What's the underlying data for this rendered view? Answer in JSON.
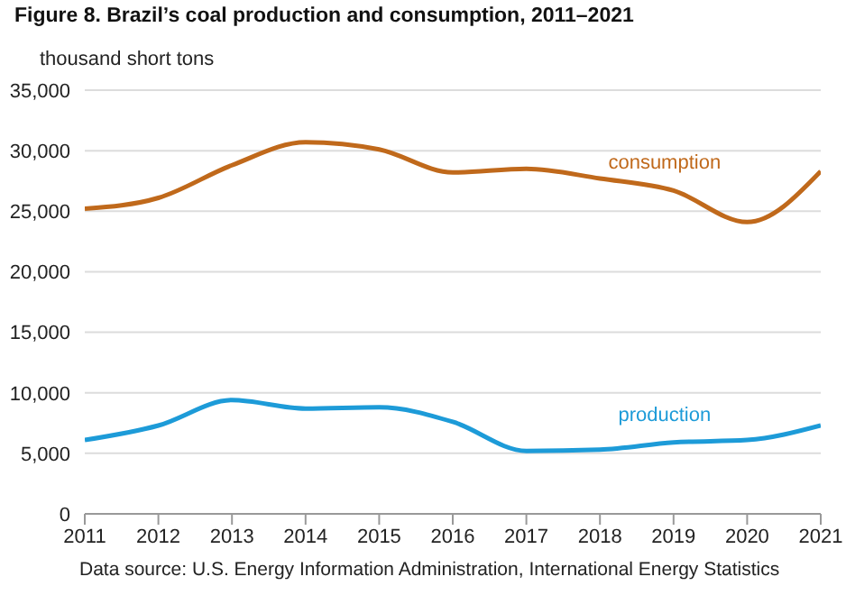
{
  "chart_data": {
    "type": "line",
    "title": "Figure 8. Brazil’s coal production and consumption, 2011–2021",
    "ylabel": "thousand short tons",
    "annotations": [
      "Data source: U.S. Energy Information Administration, International Energy Statistics"
    ],
    "x": [
      2011,
      2012,
      2013,
      2014,
      2015,
      2016,
      2017,
      2018,
      2019,
      2020,
      2021
    ],
    "xlim": [
      2011,
      2021
    ],
    "xticks": [
      2011,
      2012,
      2013,
      2014,
      2015,
      2016,
      2017,
      2018,
      2019,
      2020,
      2021
    ],
    "ylim": [
      0,
      35000
    ],
    "yticks": [
      0,
      {
        "value": 5000,
        "label": "5,000"
      },
      {
        "value": 10000,
        "label": "10,000"
      },
      {
        "value": 15000,
        "label": "15,000"
      },
      {
        "value": 20000,
        "label": "20,000"
      },
      {
        "value": 25000,
        "label": "25,000"
      },
      {
        "value": 30000,
        "label": "30,000"
      },
      {
        "value": 35000,
        "label": "35,000"
      }
    ],
    "grid": "y",
    "legend": false,
    "marker": "none",
    "line_style": "solid",
    "series": [
      {
        "name": "consumption",
        "color": "#c0691b",
        "values": [
          25200,
          26100,
          28800,
          30700,
          30100,
          28200,
          28500,
          27700,
          26700,
          24100,
          28300
        ]
      },
      {
        "name": "production",
        "color": "#1d9bd8",
        "values": [
          6100,
          7300,
          9400,
          8700,
          8800,
          7600,
          5200,
          5300,
          5900,
          6100,
          7300
        ]
      }
    ]
  }
}
